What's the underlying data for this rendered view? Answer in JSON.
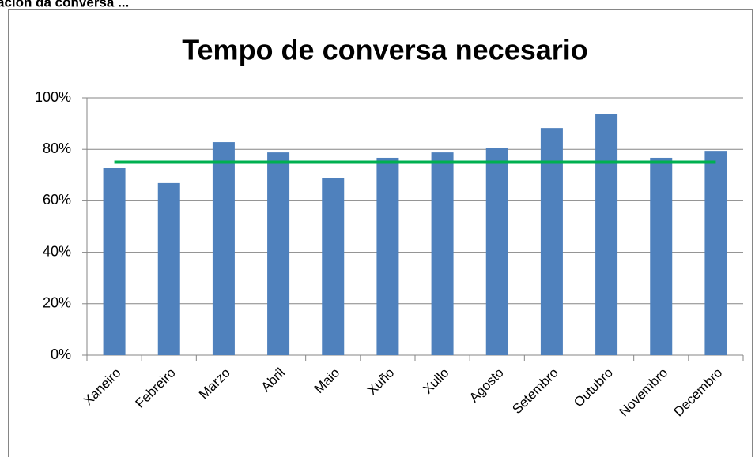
{
  "caption": "ación da conversa ...",
  "chart_data": {
    "type": "bar",
    "title": "Tempo de conversa necesario",
    "categories": [
      "Xaneiro",
      "Febreiro",
      "Marzo",
      "Abril",
      "Maio",
      "Xuño",
      "Xullo",
      "Agosto",
      "Setembro",
      "Outubro",
      "Novembro",
      "Decembro"
    ],
    "series": [
      {
        "type": "bar",
        "color": "#4f81bd",
        "values": [
          72.7,
          66.9,
          82.8,
          78.8,
          69,
          76.7,
          78.8,
          80.4,
          88.3,
          93.6,
          76.7,
          79.4
        ]
      },
      {
        "type": "line",
        "color": "#00b050",
        "values": [
          75,
          75,
          75,
          75,
          75,
          75,
          75,
          75,
          75,
          75,
          75,
          75
        ]
      }
    ],
    "ylim": [
      0,
      100
    ],
    "yticks": [
      {
        "value": 0,
        "label": "0%"
      },
      {
        "value": 20,
        "label": "20%"
      },
      {
        "value": 40,
        "label": "40%"
      },
      {
        "value": 60,
        "label": "60%"
      },
      {
        "value": 80,
        "label": "80%"
      },
      {
        "value": 100,
        "label": "100%"
      }
    ],
    "grid": true
  }
}
